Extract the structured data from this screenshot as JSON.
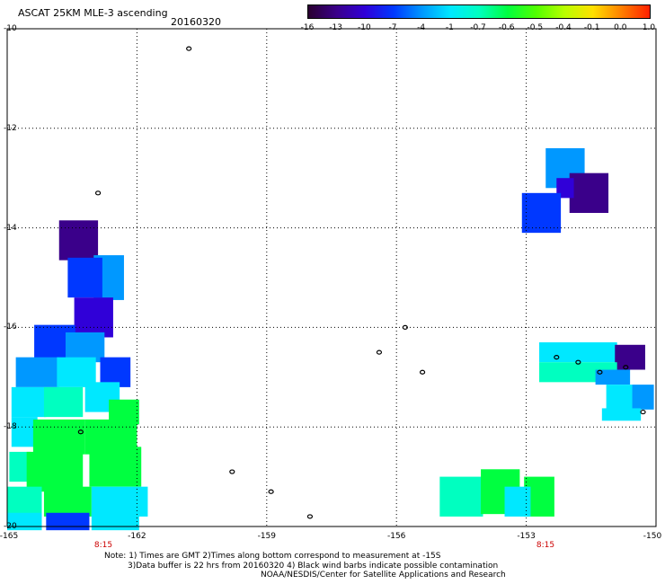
{
  "header": {
    "title": "ASCAT 25KM MLE-3 ascending",
    "date": "20160320"
  },
  "colorbar": {
    "labels": [
      "-16",
      "-13",
      "-10",
      "-7",
      "-4",
      "-1",
      "-0.7",
      "-0.6",
      "-0.5",
      "-0.4",
      "-0.1",
      "0.0",
      "1.0"
    ],
    "colors": [
      "#2a0030",
      "#3a008a",
      "#3000d8",
      "#0038ff",
      "#0098ff",
      "#00e8ff",
      "#00ffc0",
      "#00ff40",
      "#50ff00",
      "#b8ff00",
      "#ffe000",
      "#ff8000",
      "#ff2000"
    ]
  },
  "axes": {
    "lat_labels": [
      "-10",
      "-12",
      "-14",
      "-16",
      "-18",
      "-20"
    ],
    "lon_labels": [
      "-165",
      "-162",
      "-159",
      "-156",
      "-153",
      "-150"
    ]
  },
  "time_labels": [
    "8:15",
    "8:15"
  ],
  "notes": [
    "Note: 1) Times are GMT 2)Times along bottom correspond to measurement at -15S",
    "3)Data buffer is 22 hrs from 20160320 4) Black wind barbs indicate possible contamination",
    "NOAA/NESDIS/Center for Satellite Applications and Research"
  ],
  "map_data": {
    "lon_range": [
      -165,
      -150
    ],
    "lat_range": [
      -20,
      -10
    ],
    "cells": [
      {
        "lon": -163.35,
        "lat": -14.25,
        "w": 0.9,
        "h": 0.8,
        "c": "#3a008a"
      },
      {
        "lon": -162.65,
        "lat": -15.0,
        "w": 0.7,
        "h": 0.9,
        "c": "#0098ff"
      },
      {
        "lon": -163.2,
        "lat": -15.0,
        "w": 0.8,
        "h": 0.8,
        "c": "#0038ff"
      },
      {
        "lon": -163.0,
        "lat": -15.8,
        "w": 0.9,
        "h": 0.8,
        "c": "#3000d8"
      },
      {
        "lon": -163.9,
        "lat": -16.3,
        "w": 0.95,
        "h": 0.7,
        "c": "#0038ff"
      },
      {
        "lon": -163.2,
        "lat": -16.4,
        "w": 0.9,
        "h": 0.6,
        "c": "#0098ff"
      },
      {
        "lon": -164.3,
        "lat": -16.9,
        "w": 1.0,
        "h": 0.6,
        "c": "#0098ff"
      },
      {
        "lon": -163.4,
        "lat": -16.9,
        "w": 0.9,
        "h": 0.6,
        "c": "#00e8ff"
      },
      {
        "lon": -162.5,
        "lat": -16.9,
        "w": 0.7,
        "h": 0.6,
        "c": "#0038ff"
      },
      {
        "lon": -164.5,
        "lat": -17.5,
        "w": 0.8,
        "h": 0.6,
        "c": "#00e8ff"
      },
      {
        "lon": -163.7,
        "lat": -17.5,
        "w": 0.9,
        "h": 0.6,
        "c": "#00ffc0"
      },
      {
        "lon": -162.8,
        "lat": -17.4,
        "w": 0.8,
        "h": 0.6,
        "c": "#00e8ff"
      },
      {
        "lon": -162.3,
        "lat": -17.7,
        "w": 0.7,
        "h": 0.5,
        "c": "#00ff40"
      },
      {
        "lon": -164.6,
        "lat": -18.1,
        "w": 0.6,
        "h": 0.6,
        "c": "#00e8ff"
      },
      {
        "lon": -163.8,
        "lat": -18.2,
        "w": 1.2,
        "h": 0.7,
        "c": "#00ff40"
      },
      {
        "lon": -162.6,
        "lat": -18.2,
        "w": 1.2,
        "h": 0.7,
        "c": "#00ff40"
      },
      {
        "lon": -164.7,
        "lat": -18.8,
        "w": 0.5,
        "h": 0.6,
        "c": "#00ffc0"
      },
      {
        "lon": -163.9,
        "lat": -18.9,
        "w": 1.3,
        "h": 0.8,
        "c": "#00ff40"
      },
      {
        "lon": -162.5,
        "lat": -18.8,
        "w": 1.2,
        "h": 0.8,
        "c": "#00ff40"
      },
      {
        "lon": -164.6,
        "lat": -19.5,
        "w": 0.8,
        "h": 0.6,
        "c": "#00ffc0"
      },
      {
        "lon": -163.6,
        "lat": -19.5,
        "w": 1.1,
        "h": 0.6,
        "c": "#00ff40"
      },
      {
        "lon": -162.4,
        "lat": -19.5,
        "w": 1.3,
        "h": 0.6,
        "c": "#00e8ff"
      },
      {
        "lon": -164.6,
        "lat": -19.9,
        "w": 0.8,
        "h": 0.35,
        "c": "#00e8ff"
      },
      {
        "lon": -163.6,
        "lat": -19.9,
        "w": 1.0,
        "h": 0.35,
        "c": "#0038ff"
      },
      {
        "lon": -162.5,
        "lat": -19.9,
        "w": 1.1,
        "h": 0.35,
        "c": "#00e8ff"
      },
      {
        "lon": -152.1,
        "lat": -12.8,
        "w": 0.9,
        "h": 0.8,
        "c": "#0098ff"
      },
      {
        "lon": -151.55,
        "lat": -13.3,
        "w": 0.9,
        "h": 0.8,
        "c": "#3a008a"
      },
      {
        "lon": -152.1,
        "lat": -13.2,
        "w": 0.4,
        "h": 0.4,
        "c": "#3000d8"
      },
      {
        "lon": -152.65,
        "lat": -13.7,
        "w": 0.9,
        "h": 0.8,
        "c": "#0038ff"
      },
      {
        "lon": -151.8,
        "lat": -16.5,
        "w": 1.8,
        "h": 0.4,
        "c": "#00e8ff"
      },
      {
        "lon": -150.6,
        "lat": -16.6,
        "w": 0.7,
        "h": 0.5,
        "c": "#3a008a"
      },
      {
        "lon": -151.8,
        "lat": -16.9,
        "w": 1.8,
        "h": 0.4,
        "c": "#00ffc0"
      },
      {
        "lon": -151.0,
        "lat": -17.0,
        "w": 0.8,
        "h": 0.3,
        "c": "#0098ff"
      },
      {
        "lon": -150.85,
        "lat": -17.4,
        "w": 0.6,
        "h": 0.5,
        "c": "#00e8ff"
      },
      {
        "lon": -150.3,
        "lat": -17.4,
        "w": 0.5,
        "h": 0.5,
        "c": "#0098ff"
      },
      {
        "lon": -150.8,
        "lat": -17.75,
        "w": 0.9,
        "h": 0.25,
        "c": "#00e8ff"
      },
      {
        "lon": -154.5,
        "lat": -19.4,
        "w": 1.0,
        "h": 0.8,
        "c": "#00ffc0"
      },
      {
        "lon": -153.6,
        "lat": -19.3,
        "w": 0.9,
        "h": 0.9,
        "c": "#00ff40"
      },
      {
        "lon": -152.7,
        "lat": -19.4,
        "w": 0.7,
        "h": 0.8,
        "c": "#00ff40"
      },
      {
        "lon": -153.2,
        "lat": -19.5,
        "w": 0.6,
        "h": 0.6,
        "c": "#00e8ff"
      }
    ],
    "islands": [
      {
        "lon": -160.8,
        "lat": -10.4
      },
      {
        "lon": -162.9,
        "lat": -13.3
      },
      {
        "lon": -155.8,
        "lat": -16.0
      },
      {
        "lon": -156.4,
        "lat": -16.5
      },
      {
        "lon": -155.4,
        "lat": -16.9
      },
      {
        "lon": -152.3,
        "lat": -16.6
      },
      {
        "lon": -151.8,
        "lat": -16.7
      },
      {
        "lon": -151.3,
        "lat": -16.9
      },
      {
        "lon": -150.7,
        "lat": -16.8
      },
      {
        "lon": -150.3,
        "lat": -17.7
      },
      {
        "lon": -159.8,
        "lat": -18.9
      },
      {
        "lon": -158.9,
        "lat": -19.3
      },
      {
        "lon": -158.0,
        "lat": -19.8
      },
      {
        "lon": -163.3,
        "lat": -18.1
      }
    ]
  }
}
